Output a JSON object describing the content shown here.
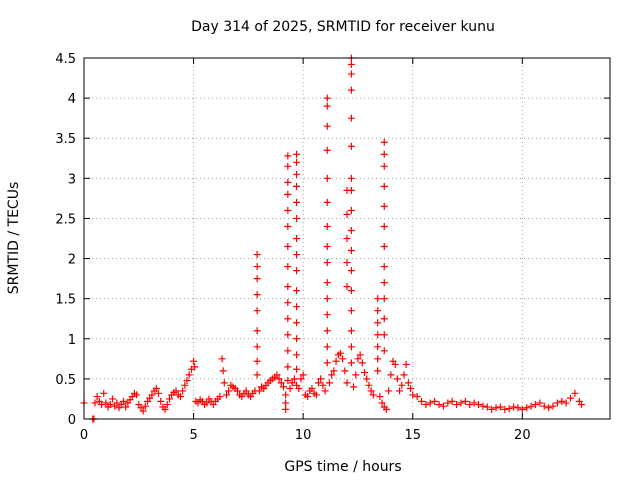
{
  "chart_data": {
    "type": "scatter",
    "title": "Day 314 of 2025, SRMTID for receiver kunu",
    "xlabel": "GPS time / hours",
    "ylabel": "SRMTID / TECUs",
    "xlim": [
      0,
      24
    ],
    "ylim": [
      0,
      4.5
    ],
    "grid": true,
    "marker": "+",
    "x_ticks": [
      {
        "value": 0,
        "label": "0"
      },
      {
        "value": 5,
        "label": "5"
      },
      {
        "value": 10,
        "label": "10"
      },
      {
        "value": 15,
        "label": "15"
      },
      {
        "value": 20,
        "label": "20"
      }
    ],
    "y_ticks": [
      {
        "value": 0,
        "label": "0"
      },
      {
        "value": 0.5,
        "label": "0.5"
      },
      {
        "value": 1,
        "label": "1"
      },
      {
        "value": 1.5,
        "label": "1.5"
      },
      {
        "value": 2,
        "label": "2"
      },
      {
        "value": 2.5,
        "label": "2.5"
      },
      {
        "value": 3,
        "label": "3"
      },
      {
        "value": 3.5,
        "label": "3.5"
      },
      {
        "value": 4,
        "label": "4"
      },
      {
        "value": 4.5,
        "label": "4.5"
      }
    ],
    "color": "#ff0000",
    "series": [
      {
        "name": "SRMTID",
        "points": [
          [
            0.0,
            0.2
          ],
          [
            0.4,
            0.0
          ],
          [
            0.45,
            0.0
          ],
          [
            0.5,
            0.2
          ],
          [
            0.6,
            0.28
          ],
          [
            0.7,
            0.22
          ],
          [
            0.8,
            0.18
          ],
          [
            0.9,
            0.32
          ],
          [
            1.0,
            0.2
          ],
          [
            1.1,
            0.15
          ],
          [
            1.2,
            0.18
          ],
          [
            1.3,
            0.25
          ],
          [
            1.4,
            0.16
          ],
          [
            1.5,
            0.2
          ],
          [
            1.6,
            0.14
          ],
          [
            1.7,
            0.18
          ],
          [
            1.8,
            0.22
          ],
          [
            1.9,
            0.15
          ],
          [
            2.0,
            0.2
          ],
          [
            2.1,
            0.24
          ],
          [
            2.2,
            0.28
          ],
          [
            2.3,
            0.32
          ],
          [
            2.4,
            0.3
          ],
          [
            2.5,
            0.18
          ],
          [
            2.6,
            0.14
          ],
          [
            2.7,
            0.1
          ],
          [
            2.8,
            0.16
          ],
          [
            2.9,
            0.22
          ],
          [
            3.0,
            0.26
          ],
          [
            3.1,
            0.3
          ],
          [
            3.2,
            0.35
          ],
          [
            3.3,
            0.38
          ],
          [
            3.4,
            0.32
          ],
          [
            3.5,
            0.22
          ],
          [
            3.6,
            0.15
          ],
          [
            3.7,
            0.12
          ],
          [
            3.8,
            0.18
          ],
          [
            3.9,
            0.25
          ],
          [
            4.0,
            0.3
          ],
          [
            4.1,
            0.33
          ],
          [
            4.2,
            0.35
          ],
          [
            4.3,
            0.3
          ],
          [
            4.4,
            0.28
          ],
          [
            4.5,
            0.35
          ],
          [
            4.6,
            0.42
          ],
          [
            4.7,
            0.48
          ],
          [
            4.8,
            0.55
          ],
          [
            4.9,
            0.62
          ],
          [
            5.0,
            0.72
          ],
          [
            5.05,
            0.65
          ],
          [
            5.1,
            0.22
          ],
          [
            5.2,
            0.2
          ],
          [
            5.3,
            0.24
          ],
          [
            5.4,
            0.22
          ],
          [
            5.5,
            0.18
          ],
          [
            5.6,
            0.2
          ],
          [
            5.7,
            0.25
          ],
          [
            5.8,
            0.22
          ],
          [
            5.9,
            0.18
          ],
          [
            6.0,
            0.22
          ],
          [
            6.1,
            0.25
          ],
          [
            6.2,
            0.28
          ],
          [
            6.3,
            0.75
          ],
          [
            6.35,
            0.6
          ],
          [
            6.4,
            0.45
          ],
          [
            6.5,
            0.3
          ],
          [
            6.6,
            0.35
          ],
          [
            6.7,
            0.42
          ],
          [
            6.8,
            0.4
          ],
          [
            6.9,
            0.38
          ],
          [
            7.0,
            0.35
          ],
          [
            7.1,
            0.3
          ],
          [
            7.2,
            0.28
          ],
          [
            7.3,
            0.32
          ],
          [
            7.4,
            0.35
          ],
          [
            7.5,
            0.3
          ],
          [
            7.6,
            0.28
          ],
          [
            7.7,
            0.32
          ],
          [
            7.8,
            0.35
          ],
          [
            7.9,
            2.05
          ],
          [
            7.9,
            1.9
          ],
          [
            7.9,
            1.75
          ],
          [
            7.9,
            1.55
          ],
          [
            7.9,
            1.35
          ],
          [
            7.9,
            1.1
          ],
          [
            7.9,
            0.9
          ],
          [
            7.9,
            0.72
          ],
          [
            7.9,
            0.55
          ],
          [
            8.0,
            0.35
          ],
          [
            8.1,
            0.4
          ],
          [
            8.2,
            0.38
          ],
          [
            8.3,
            0.42
          ],
          [
            8.4,
            0.45
          ],
          [
            8.5,
            0.48
          ],
          [
            8.6,
            0.5
          ],
          [
            8.7,
            0.52
          ],
          [
            8.8,
            0.55
          ],
          [
            8.9,
            0.5
          ],
          [
            9.0,
            0.45
          ],
          [
            9.1,
            0.4
          ],
          [
            9.2,
            0.3
          ],
          [
            9.2,
            0.2
          ],
          [
            9.2,
            0.12
          ],
          [
            9.3,
            3.28
          ],
          [
            9.3,
            3.15
          ],
          [
            9.3,
            2.95
          ],
          [
            9.3,
            2.8
          ],
          [
            9.3,
            2.6
          ],
          [
            9.3,
            2.4
          ],
          [
            9.3,
            2.15
          ],
          [
            9.3,
            1.9
          ],
          [
            9.3,
            1.65
          ],
          [
            9.3,
            1.45
          ],
          [
            9.3,
            1.25
          ],
          [
            9.3,
            1.05
          ],
          [
            9.3,
            0.85
          ],
          [
            9.3,
            0.65
          ],
          [
            9.3,
            0.48
          ],
          [
            9.4,
            0.38
          ],
          [
            9.5,
            0.45
          ],
          [
            9.6,
            0.5
          ],
          [
            9.7,
            0.42
          ],
          [
            9.8,
            0.38
          ],
          [
            9.9,
            0.5
          ],
          [
            10.0,
            0.55
          ],
          [
            9.7,
            3.3
          ],
          [
            9.7,
            3.2
          ],
          [
            9.7,
            3.05
          ],
          [
            9.7,
            2.9
          ],
          [
            9.7,
            2.7
          ],
          [
            9.7,
            2.5
          ],
          [
            9.7,
            2.25
          ],
          [
            9.7,
            2.05
          ],
          [
            9.7,
            1.85
          ],
          [
            9.7,
            1.6
          ],
          [
            9.7,
            1.4
          ],
          [
            9.7,
            1.2
          ],
          [
            9.7,
            1.0
          ],
          [
            9.7,
            0.8
          ],
          [
            9.7,
            0.62
          ],
          [
            10.1,
            0.3
          ],
          [
            10.2,
            0.28
          ],
          [
            10.3,
            0.35
          ],
          [
            10.4,
            0.38
          ],
          [
            10.5,
            0.32
          ],
          [
            10.6,
            0.3
          ],
          [
            10.7,
            0.45
          ],
          [
            10.8,
            0.5
          ],
          [
            10.9,
            0.42
          ],
          [
            11.0,
            0.35
          ],
          [
            11.1,
            4.0
          ],
          [
            11.1,
            3.9
          ],
          [
            11.1,
            3.65
          ],
          [
            11.1,
            3.35
          ],
          [
            11.1,
            3.0
          ],
          [
            11.1,
            2.7
          ],
          [
            11.1,
            2.4
          ],
          [
            11.1,
            2.15
          ],
          [
            11.1,
            1.95
          ],
          [
            11.1,
            1.7
          ],
          [
            11.1,
            1.5
          ],
          [
            11.1,
            1.3
          ],
          [
            11.1,
            1.1
          ],
          [
            11.1,
            0.9
          ],
          [
            11.1,
            0.7
          ],
          [
            11.2,
            0.45
          ],
          [
            11.3,
            0.55
          ],
          [
            11.4,
            0.6
          ],
          [
            11.5,
            0.72
          ],
          [
            11.6,
            0.8
          ],
          [
            11.7,
            0.82
          ],
          [
            11.8,
            0.75
          ],
          [
            11.9,
            0.6
          ],
          [
            12.0,
            0.45
          ],
          [
            12.2,
            4.5
          ],
          [
            12.2,
            4.42
          ],
          [
            12.2,
            4.3
          ],
          [
            12.2,
            4.1
          ],
          [
            12.2,
            3.75
          ],
          [
            12.2,
            3.4
          ],
          [
            12.2,
            3.0
          ],
          [
            12.2,
            2.85
          ],
          [
            12.2,
            2.6
          ],
          [
            12.2,
            2.35
          ],
          [
            12.2,
            2.1
          ],
          [
            12.2,
            1.85
          ],
          [
            12.2,
            1.6
          ],
          [
            12.2,
            1.35
          ],
          [
            12.2,
            1.1
          ],
          [
            12.2,
            0.9
          ],
          [
            12.2,
            0.7
          ],
          [
            12.0,
            2.85
          ],
          [
            12.0,
            2.55
          ],
          [
            12.0,
            2.25
          ],
          [
            12.0,
            1.95
          ],
          [
            12.0,
            1.65
          ],
          [
            12.3,
            0.4
          ],
          [
            12.4,
            0.55
          ],
          [
            12.5,
            0.75
          ],
          [
            12.6,
            0.8
          ],
          [
            12.7,
            0.7
          ],
          [
            12.8,
            0.58
          ],
          [
            12.9,
            0.5
          ],
          [
            13.0,
            0.42
          ],
          [
            13.1,
            0.35
          ],
          [
            13.2,
            0.3
          ],
          [
            13.4,
            1.5
          ],
          [
            13.4,
            1.35
          ],
          [
            13.4,
            1.2
          ],
          [
            13.4,
            1.05
          ],
          [
            13.4,
            0.9
          ],
          [
            13.4,
            0.75
          ],
          [
            13.4,
            0.6
          ],
          [
            13.5,
            0.28
          ],
          [
            13.6,
            0.2
          ],
          [
            13.7,
            0.15
          ],
          [
            13.8,
            0.12
          ],
          [
            13.7,
            3.45
          ],
          [
            13.7,
            3.3
          ],
          [
            13.7,
            3.15
          ],
          [
            13.7,
            2.9
          ],
          [
            13.7,
            2.65
          ],
          [
            13.7,
            2.4
          ],
          [
            13.7,
            2.15
          ],
          [
            13.7,
            1.9
          ],
          [
            13.7,
            1.7
          ],
          [
            13.7,
            1.5
          ],
          [
            13.7,
            1.25
          ],
          [
            13.7,
            1.05
          ],
          [
            13.7,
            0.85
          ],
          [
            13.9,
            0.35
          ],
          [
            14.0,
            0.55
          ],
          [
            14.1,
            0.72
          ],
          [
            14.2,
            0.68
          ],
          [
            14.3,
            0.5
          ],
          [
            14.4,
            0.35
          ],
          [
            14.5,
            0.42
          ],
          [
            14.6,
            0.55
          ],
          [
            14.7,
            0.68
          ],
          [
            14.8,
            0.45
          ],
          [
            14.9,
            0.38
          ],
          [
            15.0,
            0.3
          ],
          [
            15.2,
            0.28
          ],
          [
            15.4,
            0.22
          ],
          [
            15.6,
            0.18
          ],
          [
            15.8,
            0.2
          ],
          [
            16.0,
            0.22
          ],
          [
            16.2,
            0.18
          ],
          [
            16.4,
            0.16
          ],
          [
            16.6,
            0.2
          ],
          [
            16.8,
            0.22
          ],
          [
            17.0,
            0.18
          ],
          [
            17.2,
            0.2
          ],
          [
            17.4,
            0.22
          ],
          [
            17.6,
            0.18
          ],
          [
            17.8,
            0.2
          ],
          [
            18.0,
            0.18
          ],
          [
            18.2,
            0.16
          ],
          [
            18.4,
            0.15
          ],
          [
            18.6,
            0.12
          ],
          [
            18.8,
            0.14
          ],
          [
            19.0,
            0.15
          ],
          [
            19.2,
            0.12
          ],
          [
            19.4,
            0.13
          ],
          [
            19.6,
            0.15
          ],
          [
            19.8,
            0.14
          ],
          [
            20.0,
            0.12
          ],
          [
            20.2,
            0.14
          ],
          [
            20.4,
            0.16
          ],
          [
            20.6,
            0.18
          ],
          [
            20.8,
            0.2
          ],
          [
            21.0,
            0.16
          ],
          [
            21.2,
            0.14
          ],
          [
            21.4,
            0.16
          ],
          [
            21.6,
            0.2
          ],
          [
            21.8,
            0.22
          ],
          [
            22.0,
            0.2
          ],
          [
            22.2,
            0.26
          ],
          [
            22.4,
            0.32
          ],
          [
            22.6,
            0.22
          ],
          [
            22.7,
            0.18
          ]
        ]
      }
    ]
  }
}
